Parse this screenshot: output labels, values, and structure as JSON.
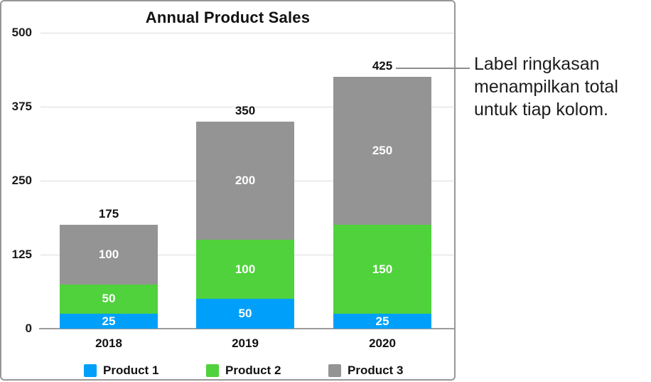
{
  "chart_data": {
    "type": "bar",
    "stacked": true,
    "title": "Annual Product Sales",
    "categories": [
      "2018",
      "2019",
      "2020"
    ],
    "series": [
      {
        "name": "Product 1",
        "color": "#00a0fa",
        "values": [
          25,
          50,
          25
        ]
      },
      {
        "name": "Product 2",
        "color": "#50d23c",
        "values": [
          50,
          100,
          150
        ]
      },
      {
        "name": "Product 3",
        "color": "#949494",
        "values": [
          100,
          200,
          250
        ]
      }
    ],
    "totals": [
      175,
      350,
      425
    ],
    "y_ticks": [
      0,
      125,
      250,
      375,
      500
    ],
    "ylim": [
      0,
      500
    ],
    "grid": true,
    "legend_position": "bottom",
    "colors": {
      "gridline": "#dcdcdc",
      "axis_line": "#9c9c9c",
      "panel_border": "#979797",
      "segment_label_text": "#ffffff",
      "total_label_text": "#111111"
    }
  },
  "callout": {
    "text": "Label ringkasan menampilkan total untuk tiap kolom.",
    "target_total": "425"
  }
}
